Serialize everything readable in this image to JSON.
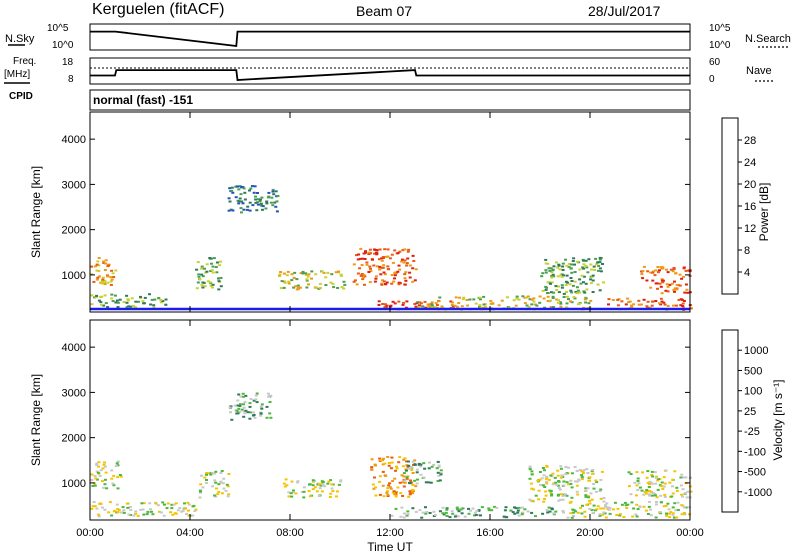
{
  "header": {
    "station": "Kerguelen (fitACF)",
    "beam": "Beam 07",
    "date": "28/Jul/2017"
  },
  "labels": {
    "nsky": "N.Sky",
    "nsearch": "N.Search",
    "freq": "Freq.",
    "freq_unit": "[MHz]",
    "nave": "Nave",
    "cpid": "CPID",
    "cpid_value": "normal (fast) -151",
    "slant_range": "Slant Range [km]",
    "time_axis": "Time UT",
    "power_label": "Power [dB]",
    "velocity_label": "Velocity  [m s⁻¹]"
  },
  "chart_data": [
    {
      "type": "line",
      "name": "noise-panel",
      "left_ticks": [
        "10^5",
        "10^0"
      ],
      "right_ticks": [
        "10^5",
        "10^0"
      ],
      "series": [
        {
          "name": "N.Sky",
          "x": [
            0,
            1.02,
            5.85,
            5.9,
            24
          ],
          "y": [
            4,
            4,
            0,
            4,
            4
          ]
        },
        {
          "name": "N.Search",
          "x": [
            0,
            24
          ],
          "y": [
            4.1,
            4.1
          ]
        }
      ]
    },
    {
      "type": "line",
      "name": "freq-nave-panel",
      "left_ticks": [
        "18",
        "8"
      ],
      "right_ticks": [
        "60",
        "0"
      ],
      "series": [
        {
          "name": "Freq",
          "x": [
            0,
            1.0,
            1.05,
            5.85,
            5.9,
            13.0,
            13.05,
            24
          ],
          "y": [
            10.5,
            10.5,
            13.5,
            13.5,
            8,
            13.5,
            10.5,
            10.5
          ]
        },
        {
          "name": "Nave",
          "x": [
            0,
            24
          ],
          "y": [
            40,
            40
          ]
        }
      ]
    },
    {
      "type": "heatmap",
      "name": "power-panel",
      "xlim": [
        0,
        24
      ],
      "ylim": [
        180,
        4600
      ],
      "x_ticks": [
        "00:00",
        "04:00",
        "08:00",
        "12:00",
        "16:00",
        "20:00",
        "00:00"
      ],
      "y_ticks": [
        1000,
        2000,
        3000,
        4000
      ],
      "colorbar_ticks": [
        "28",
        "24",
        "20",
        "16",
        "12",
        "8",
        "4"
      ],
      "colorbar_colors": [
        "#1c1cf0",
        "#2453b8",
        "#2f7a5a",
        "#4aa050",
        "#c8d22c",
        "#f09a14",
        "#ea5a12",
        "#e01e10"
      ],
      "echo_regions": [
        {
          "t": [
            0.0,
            1.0
          ],
          "r": [
            800,
            1400
          ],
          "level": 5
        },
        {
          "t": [
            0.0,
            3.0
          ],
          "r": [
            300,
            600
          ],
          "level": 3
        },
        {
          "t": [
            4.2,
            5.2
          ],
          "r": [
            700,
            1400
          ],
          "level": 3
        },
        {
          "t": [
            5.5,
            7.5
          ],
          "r": [
            2400,
            3000
          ],
          "level": 2
        },
        {
          "t": [
            7.5,
            10.2
          ],
          "r": [
            700,
            1100
          ],
          "level": 4
        },
        {
          "t": [
            10.5,
            13.0
          ],
          "r": [
            800,
            1600
          ],
          "level": 6
        },
        {
          "t": [
            11.5,
            14.5
          ],
          "r": [
            250,
            450
          ],
          "level": 7
        },
        {
          "t": [
            13.0,
            20.0
          ],
          "r": [
            250,
            550
          ],
          "level": 4
        },
        {
          "t": [
            18.0,
            20.5
          ],
          "r": [
            600,
            1400
          ],
          "level": 3
        },
        {
          "t": [
            20.5,
            24.0
          ],
          "r": [
            250,
            500
          ],
          "level": 6
        },
        {
          "t": [
            22.0,
            24.0
          ],
          "r": [
            600,
            1200
          ],
          "level": 6
        }
      ]
    },
    {
      "type": "heatmap",
      "name": "velocity-panel",
      "xlim": [
        0,
        24
      ],
      "ylim": [
        180,
        4600
      ],
      "x_ticks": [
        "00:00",
        "04:00",
        "08:00",
        "12:00",
        "16:00",
        "20:00",
        "00:00"
      ],
      "y_ticks": [
        1000,
        2000,
        3000,
        4000
      ],
      "colorbar_ticks": [
        "1000",
        "500",
        "100",
        "25",
        "-25",
        "-100",
        "-500",
        "-1000"
      ],
      "colorbar_colors": [
        "#e01e10",
        "#ea5a12",
        "#f09a14",
        "#f5c400",
        "#c8c8c8",
        "#4ab83c",
        "#2f7a5a",
        "#2453b8",
        "#1c1cf0"
      ],
      "echo_regions": [
        {
          "t": [
            0.0,
            1.2
          ],
          "r": [
            900,
            1500
          ],
          "level": 4
        },
        {
          "t": [
            0.0,
            4.5
          ],
          "r": [
            280,
            600
          ],
          "level": 4
        },
        {
          "t": [
            4.3,
            5.5
          ],
          "r": [
            700,
            1300
          ],
          "level": 4
        },
        {
          "t": [
            5.5,
            7.2
          ],
          "r": [
            2400,
            3000
          ],
          "level": 5
        },
        {
          "t": [
            7.7,
            10.0
          ],
          "r": [
            700,
            1100
          ],
          "level": 4
        },
        {
          "t": [
            11.2,
            13.0
          ],
          "r": [
            700,
            1600
          ],
          "level": 2
        },
        {
          "t": [
            12.5,
            14.0
          ],
          "r": [
            1000,
            1500
          ],
          "level": 5
        },
        {
          "t": [
            12.0,
            19.0
          ],
          "r": [
            250,
            500
          ],
          "level": 5
        },
        {
          "t": [
            17.5,
            20.5
          ],
          "r": [
            600,
            1400
          ],
          "level": 4
        },
        {
          "t": [
            19.0,
            24.0
          ],
          "r": [
            250,
            600
          ],
          "level": 4
        },
        {
          "t": [
            21.5,
            24.0
          ],
          "r": [
            700,
            1300
          ],
          "level": 4
        }
      ]
    }
  ]
}
